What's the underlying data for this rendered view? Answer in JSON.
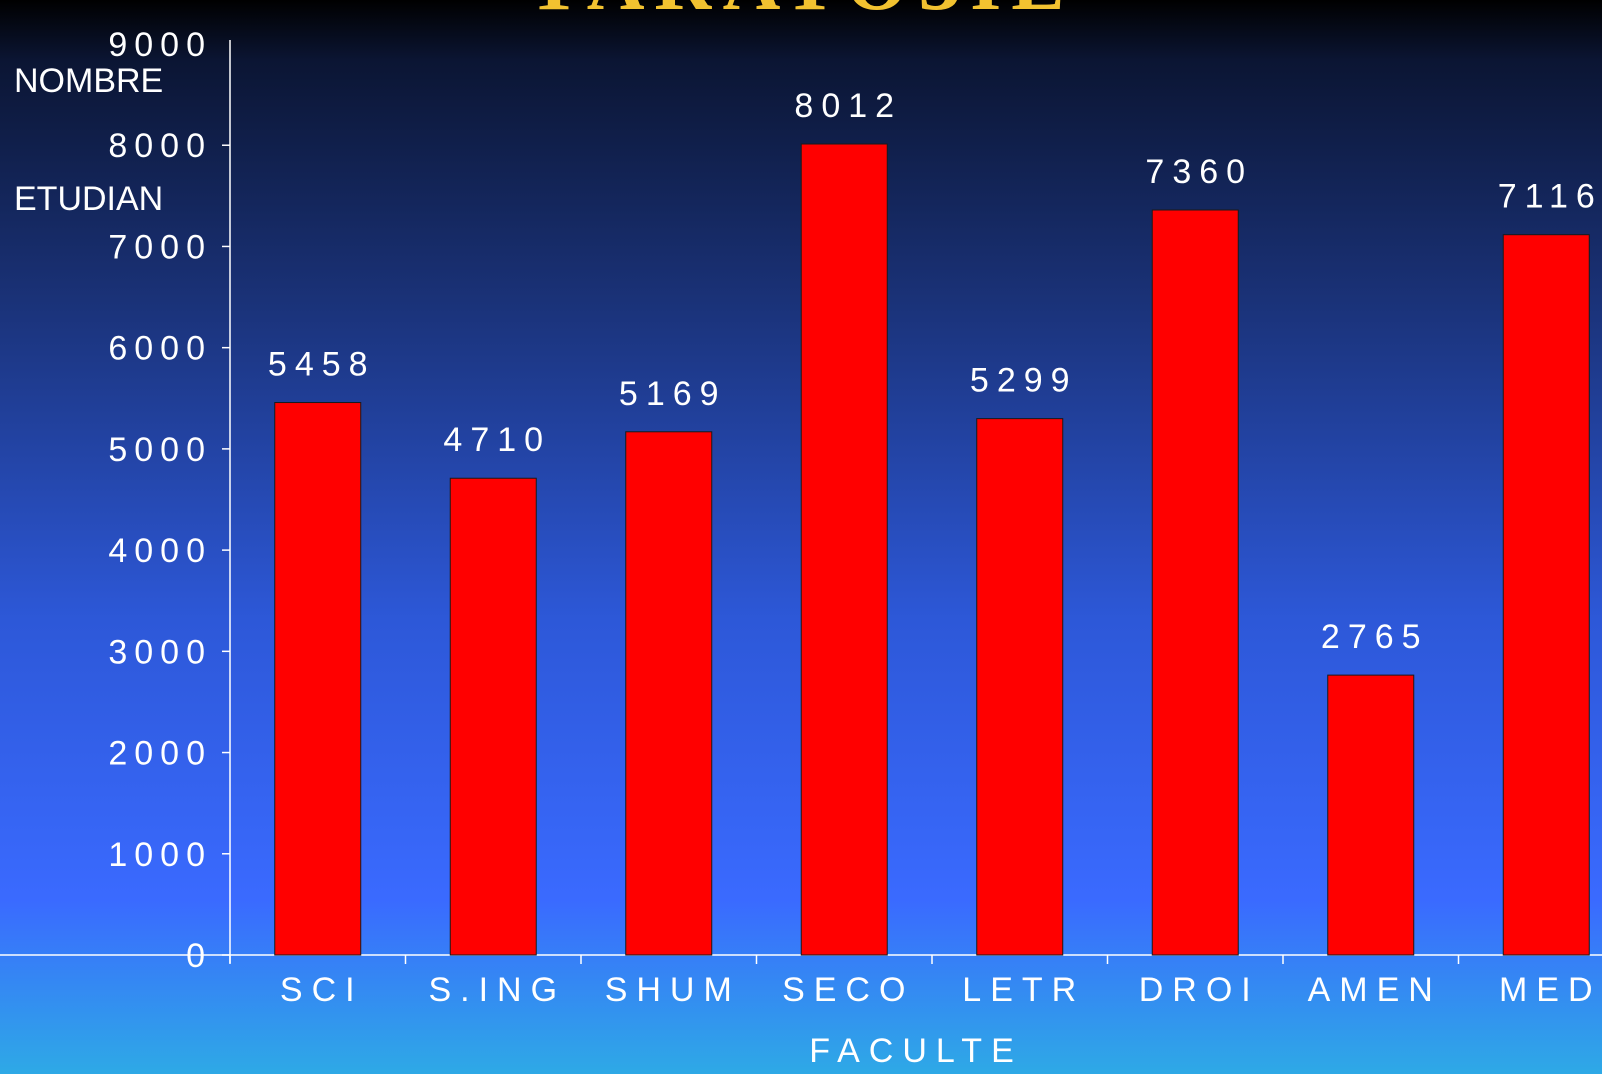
{
  "page": {
    "background_top": "#000000",
    "background_bottom": "#2ea9e6"
  },
  "chart_data": {
    "type": "bar",
    "title": "",
    "title_fragment": "ТАКАТОЗІЕ",
    "xlabel": "FACULTE",
    "ylabel": "NOMBRE\n\nETUDIAN",
    "categories": [
      "SCI",
      "S.ING",
      "SHUM",
      "SECO",
      "LETR",
      "DROI",
      "AMEN",
      "MED"
    ],
    "values": [
      5458,
      4710,
      5169,
      8012,
      5299,
      7360,
      2765,
      7116
    ],
    "value_labels": [
      "5458",
      "4710",
      "5169",
      "8012",
      "5299",
      "7360",
      "2765",
      "7116"
    ],
    "ylim": [
      0,
      9000
    ],
    "yticks": [
      0,
      1000,
      2000,
      3000,
      4000,
      5000,
      6000,
      7000,
      8000,
      9000
    ],
    "ytick_labels": [
      "0",
      "1000",
      "2000",
      "3000",
      "4000",
      "5000",
      "6000",
      "7000",
      "8000",
      "9000"
    ],
    "grid": false,
    "legend": "none",
    "bar_color": "#ff0000",
    "axis_color": "#ffffff",
    "text_color": "#ffffff",
    "title_color": "#f2c230"
  }
}
